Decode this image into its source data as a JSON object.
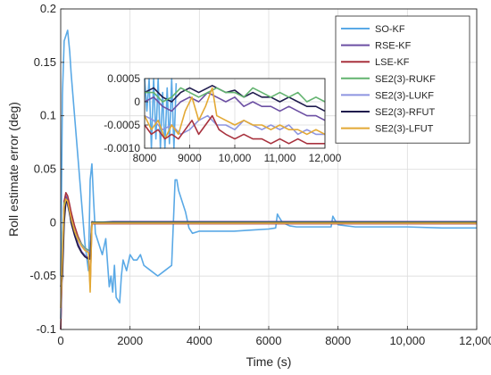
{
  "chart_data": [
    {
      "type": "line",
      "xlabel": "Time (s)",
      "ylabel": "Roll estimate error (deg)",
      "xlim": [
        0,
        12000
      ],
      "ylim": [
        -0.1,
        0.2
      ],
      "xticks": [
        0,
        2000,
        4000,
        6000,
        8000,
        10000,
        12000
      ],
      "xtick_labels": [
        "0",
        "2000",
        "4000",
        "6000",
        "8000",
        "10,000",
        "12,000"
      ],
      "yticks": [
        -0.1,
        -0.05,
        0,
        0.05,
        0.1,
        0.15,
        0.2
      ],
      "ytick_labels": [
        "-0.1",
        "-0.05",
        "0",
        "0.05",
        "0.1",
        "0.15",
        "0.2"
      ],
      "grid": true,
      "legend_position": "top-right",
      "series": [
        {
          "name": "SO-KF",
          "color": "#5aa9e6",
          "x": [
            0,
            50,
            100,
            150,
            200,
            260,
            300,
            400,
            500,
            600,
            700,
            800,
            850,
            900,
            950,
            1000,
            1100,
            1200,
            1300,
            1400,
            1450,
            1500,
            1550,
            1600,
            1700,
            1750,
            1800,
            1900,
            2000,
            2100,
            2200,
            2300,
            2400,
            2600,
            2800,
            3000,
            3200,
            3300,
            3350,
            3400,
            3500,
            3600,
            3700,
            3800,
            4000,
            4500,
            5000,
            5500,
            6000,
            6200,
            6250,
            6300,
            6400,
            6600,
            6800,
            7000,
            7500,
            7800,
            7850,
            7900,
            8000,
            8500,
            9000,
            9500,
            10000,
            11000,
            12000
          ],
          "y": [
            -0.05,
            0.12,
            0.17,
            0.175,
            0.18,
            0.16,
            0.14,
            0.1,
            0.06,
            0.02,
            -0.02,
            -0.045,
            0.04,
            0.055,
            0.02,
            -0.01,
            -0.02,
            -0.03,
            -0.015,
            -0.06,
            -0.05,
            -0.065,
            -0.04,
            -0.07,
            -0.075,
            -0.05,
            -0.035,
            -0.045,
            -0.03,
            -0.035,
            -0.035,
            -0.03,
            -0.04,
            -0.045,
            -0.05,
            -0.045,
            -0.04,
            0.04,
            0.04,
            0.03,
            0.02,
            0.01,
            -0.005,
            -0.01,
            -0.008,
            -0.008,
            -0.008,
            -0.007,
            -0.006,
            -0.005,
            0.008,
            0.005,
            0.0,
            -0.003,
            -0.004,
            -0.004,
            -0.004,
            -0.004,
            0.006,
            0.003,
            -0.002,
            -0.004,
            -0.004,
            -0.004,
            -0.004,
            -0.005,
            -0.005
          ]
        },
        {
          "name": "RSE-KF",
          "color": "#6c4fa3",
          "x": [
            0,
            50,
            100,
            150,
            200,
            250,
            300,
            400,
            500,
            600,
            700,
            800,
            850,
            900,
            1000,
            1500,
            2000,
            3000,
            4000,
            6000,
            8000,
            10000,
            12000
          ],
          "y": [
            -0.1,
            -0.04,
            0.02,
            0.025,
            0.02,
            0.012,
            0.005,
            -0.01,
            -0.02,
            -0.027,
            -0.031,
            -0.033,
            -0.03,
            0.001,
            0.0,
            0.001,
            0.001,
            0.001,
            0.001,
            0.001,
            0.001,
            0.001,
            0.001
          ]
        },
        {
          "name": "LSE-KF",
          "color": "#a8323e",
          "x": [
            0,
            50,
            100,
            150,
            200,
            250,
            300,
            400,
            500,
            600,
            700,
            800,
            850,
            900,
            1000,
            1500,
            2000,
            3000,
            4000,
            6000,
            8000,
            10000,
            12000
          ],
          "y": [
            -0.1,
            -0.03,
            0.02,
            0.028,
            0.025,
            0.018,
            0.01,
            -0.003,
            -0.013,
            -0.02,
            -0.024,
            -0.026,
            -0.06,
            -0.001,
            -0.001,
            -0.001,
            -0.001,
            -0.001,
            -0.001,
            -0.001,
            -0.001,
            -0.001,
            -0.001
          ]
        },
        {
          "name": "SE2(3)-RUKF",
          "color": "#62b36f",
          "x": [
            0,
            50,
            100,
            150,
            200,
            250,
            300,
            400,
            500,
            600,
            700,
            800,
            850,
            900,
            1000,
            2000,
            4000,
            6000,
            8000,
            10000,
            12000
          ],
          "y": [
            -0.09,
            -0.02,
            0.018,
            0.022,
            0.018,
            0.01,
            0.004,
            -0.008,
            -0.015,
            -0.02,
            -0.024,
            -0.026,
            -0.026,
            0.0005,
            0.0005,
            0.0005,
            0.0005,
            0.0005,
            0.0005,
            0.0005,
            0.0005
          ]
        },
        {
          "name": "SE2(3)-LUKF",
          "color": "#8d95e0",
          "x": [
            0,
            50,
            100,
            150,
            200,
            250,
            300,
            400,
            500,
            600,
            700,
            800,
            850,
            900,
            1000,
            2000,
            4000,
            6000,
            8000,
            10000,
            12000
          ],
          "y": [
            -0.09,
            -0.025,
            0.015,
            0.02,
            0.016,
            0.009,
            0.003,
            -0.009,
            -0.016,
            -0.021,
            -0.025,
            -0.027,
            -0.027,
            -0.0005,
            -0.0005,
            -0.0005,
            -0.0005,
            -0.0005,
            -0.0005,
            -0.0005,
            -0.0005
          ]
        },
        {
          "name": "SE2(3)-RFUT",
          "color": "#1f1b4d",
          "x": [
            0,
            50,
            100,
            150,
            200,
            250,
            300,
            400,
            500,
            600,
            700,
            800,
            850,
            900,
            1000,
            2000,
            4000,
            6000,
            8000,
            10000,
            12000
          ],
          "y": [
            -0.06,
            -0.05,
            0.0,
            0.02,
            0.018,
            0.01,
            0.0,
            -0.012,
            -0.022,
            -0.028,
            -0.032,
            -0.034,
            -0.034,
            0.0,
            0.0,
            0.0,
            0.0,
            0.0,
            0.0,
            0.0,
            0.0
          ]
        },
        {
          "name": "SE2(3)-LFUT",
          "color": "#e3a935",
          "x": [
            0,
            50,
            100,
            150,
            200,
            250,
            300,
            400,
            500,
            600,
            700,
            800,
            850,
            900,
            1000,
            2000,
            4000,
            6000,
            8000,
            10000,
            12000
          ],
          "y": [
            -0.08,
            -0.03,
            0.015,
            0.022,
            0.02,
            0.012,
            0.004,
            -0.008,
            -0.016,
            -0.022,
            -0.026,
            -0.028,
            -0.065,
            -0.0005,
            -0.0005,
            -0.0005,
            -0.0005,
            -0.0005,
            -0.0005,
            -0.0005,
            -0.0005
          ]
        }
      ]
    },
    {
      "type": "line",
      "xlim": [
        8000,
        12000
      ],
      "ylim": [
        -0.001,
        0.0005
      ],
      "xticks": [
        8000,
        9000,
        10000,
        11000,
        12000
      ],
      "xtick_labels": [
        "8000",
        "9000",
        "10,000",
        "11,000",
        "12,000"
      ],
      "yticks": [
        -0.001,
        -0.0005,
        0,
        0.0005
      ],
      "ytick_labels": [
        "-0.0010",
        "-0.0005",
        "0",
        "0.0005"
      ],
      "grid": true,
      "series": [
        {
          "name": "SO-KF",
          "color": "#5aa9e6",
          "x": [
            8000,
            8050,
            8100,
            8150,
            8200,
            8250,
            8300,
            8350,
            8400,
            8450,
            8500,
            8550,
            8600,
            8650,
            8700
          ],
          "y": [
            0.0005,
            -0.0002,
            0.0005,
            -0.001,
            0.0005,
            -0.0008,
            0.0005,
            -0.001,
            0.0002,
            -0.001,
            0.0003,
            -0.0009,
            0.0005,
            -0.001,
            0.0004
          ]
        },
        {
          "name": "SE2(3)-RFUT",
          "color": "#1f1b4d",
          "x": [
            8000,
            8200,
            8400,
            8600,
            8800,
            9000,
            9200,
            9400,
            9500,
            9600,
            9800,
            10000,
            10200,
            10400,
            10600,
            10800,
            11000,
            11200,
            11400,
            11600,
            11800,
            12000
          ],
          "y": [
            0.0002,
            0.0003,
            0.0001,
            0.0,
            0.0002,
            0.0003,
            0.0002,
            0.0003,
            0.00035,
            0.0003,
            0.0002,
            0.00025,
            0.0001,
            0.0002,
            0.0001,
            0.0001,
            0.0,
            0.0001,
            0.0,
            -0.0001,
            -0.0001,
            -0.0002
          ]
        },
        {
          "name": "RSE-KF",
          "color": "#6c4fa3",
          "x": [
            8000,
            8200,
            8400,
            8600,
            8800,
            9000,
            9200,
            9400,
            9600,
            9800,
            10000,
            10200,
            10400,
            10600,
            10800,
            11000,
            11200,
            11400,
            11600,
            11800,
            12000
          ],
          "y": [
            0.0,
            0.0001,
            -0.0001,
            -0.0002,
            0.0,
            0.0001,
            0.0,
            0.0002,
            0.0001,
            0.0,
            0.0001,
            -0.0001,
            0.0,
            -0.0001,
            -0.0001,
            -0.0002,
            -0.0001,
            -0.0002,
            -0.0003,
            -0.0003,
            -0.0004
          ]
        },
        {
          "name": "SE2(3)-RUKF",
          "color": "#62b36f",
          "x": [
            8000,
            8200,
            8400,
            8600,
            8800,
            9000,
            9200,
            9400,
            9600,
            9800,
            10000,
            10200,
            10400,
            10600,
            10800,
            11000,
            11200,
            11400,
            11600,
            11800,
            12000
          ],
          "y": [
            0.0002,
            0.0002,
            0.0,
            0.0001,
            0.0003,
            0.0002,
            0.0001,
            0.0002,
            0.0003,
            0.0002,
            0.0002,
            0.0001,
            0.0003,
            0.0002,
            0.0001,
            0.0002,
            0.0001,
            0.0002,
            0.0,
            0.0001,
            0.0
          ]
        },
        {
          "name": "SE2(3)-LUKF",
          "color": "#8d95e0",
          "x": [
            8000,
            8200,
            8400,
            8600,
            8800,
            9000,
            9200,
            9400,
            9600,
            9800,
            10000,
            10200,
            10400,
            10600,
            10800,
            11000,
            11200,
            11400,
            11600,
            11800,
            12000
          ],
          "y": [
            -0.0003,
            -0.0004,
            -0.0006,
            -0.0005,
            -0.0007,
            -0.0006,
            -0.0004,
            -0.0003,
            -0.0005,
            -0.0005,
            -0.0006,
            -0.0004,
            -0.0005,
            -0.0006,
            -0.0005,
            -0.0006,
            -0.0005,
            -0.0007,
            -0.0006,
            -0.0007,
            -0.0007
          ]
        },
        {
          "name": "SE2(3)-LFUT",
          "color": "#e3a935",
          "x": [
            8000,
            8150,
            8300,
            8450,
            8600,
            8750,
            8900,
            9050,
            9200,
            9350,
            9500,
            9600,
            9800,
            10000,
            10200,
            10400,
            10600,
            10800,
            11000,
            11200,
            11400,
            11600,
            11800,
            12000
          ],
          "y": [
            -0.0003,
            -0.0006,
            -0.0004,
            -0.0008,
            -0.0005,
            -0.0007,
            -0.0002,
            0.0001,
            -0.0004,
            -0.0001,
            0.0003,
            -0.0003,
            -0.0004,
            -0.0005,
            -0.0004,
            -0.0005,
            -0.0005,
            -0.0006,
            -0.0005,
            -0.0006,
            -0.0006,
            -0.0007,
            -0.0006,
            -0.0007
          ]
        },
        {
          "name": "LSE-KF",
          "color": "#a8323e",
          "x": [
            8000,
            8150,
            8300,
            8450,
            8600,
            8750,
            8900,
            9050,
            9200,
            9350,
            9500,
            9650,
            9800,
            10000,
            10200,
            10400,
            10600,
            10800,
            11000,
            11200,
            11400,
            11600,
            11800,
            12000
          ],
          "y": [
            -0.0005,
            -0.0007,
            -0.0006,
            -0.0008,
            -0.0007,
            -0.0008,
            -0.0006,
            -0.0004,
            -0.0007,
            -0.0005,
            -0.0003,
            -0.0006,
            -0.0007,
            -0.0008,
            -0.0007,
            -0.0008,
            -0.0008,
            -0.0009,
            -0.0008,
            -0.0009,
            -0.0008,
            -0.0009,
            -0.0009,
            -0.0009
          ]
        }
      ]
    }
  ]
}
